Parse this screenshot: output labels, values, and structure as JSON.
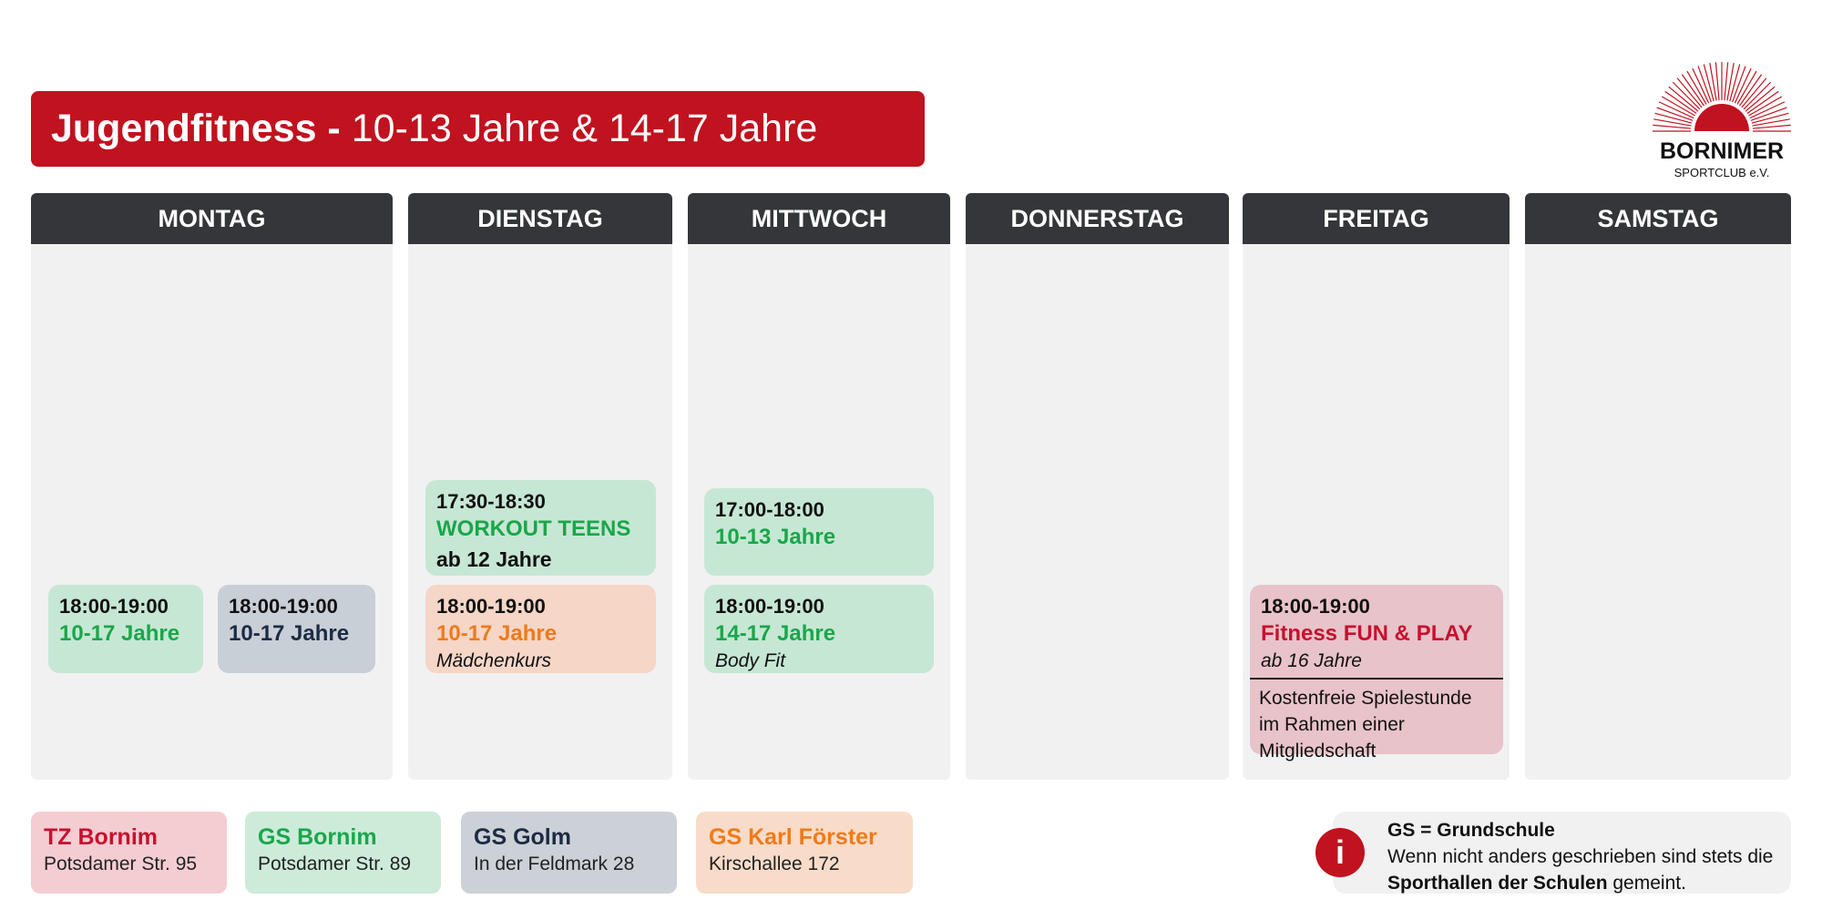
{
  "header": {
    "title_bold": "Jugendfitness -",
    "title_regular": "10-13 Jahre & 14-17 Jahre",
    "logo_name": "BORNIMER",
    "logo_sub": "SPORTCLUB e.V."
  },
  "days": [
    {
      "name": "MONTAG",
      "events": [
        {
          "time": "18:00-19:00",
          "title": "10-17 Jahre",
          "color": "#c6e7d4",
          "text_color": "#1aa64a"
        },
        {
          "time": "18:00-19:00",
          "title": "10-17 Jahre",
          "color": "#c9cfd6",
          "text_color": "#1c2b44"
        }
      ]
    },
    {
      "name": "DIENSTAG",
      "events": [
        {
          "time": "17:30-18:30",
          "title": "WORKOUT TEENS",
          "sub": "ab 12 Jahre",
          "color": "#c6e7d4",
          "text_color": "#1aa64a"
        },
        {
          "time": "18:00-19:00",
          "title": "10-17 Jahre",
          "note": "Mädchenkurs",
          "color": "#f6d6c6",
          "text_color": "#f07a1a"
        }
      ]
    },
    {
      "name": "MITTWOCH",
      "events": [
        {
          "time": "17:00-18:00",
          "title": "10-13 Jahre",
          "color": "#c6e7d4",
          "text_color": "#1aa64a"
        },
        {
          "time": "18:00-19:00",
          "title": "14-17 Jahre",
          "note": "Body Fit",
          "color": "#c6e7d4",
          "text_color": "#1aa64a"
        }
      ]
    },
    {
      "name": "DONNERSTAG",
      "events": []
    },
    {
      "name": "FREITAG",
      "events": [
        {
          "time": "18:00-19:00",
          "title": "Fitness FUN & PLAY",
          "note": "ab 16 Jahre",
          "extra": "Kostenfreie Spielestunde im Rahmen einer Mitgliedschaft",
          "color": "#e8c3c9",
          "text_color": "#c8102e"
        }
      ]
    },
    {
      "name": "SAMSTAG",
      "events": []
    }
  ],
  "legend": [
    {
      "name": "TZ Bornim",
      "address": "Potsdamer Str. 95",
      "color": "#f4cdd3",
      "text_color": "#c8102e"
    },
    {
      "name": "GS Bornim",
      "address": "Potsdamer Str. 89",
      "color": "#cdebd9",
      "text_color": "#1aa64a"
    },
    {
      "name": "GS Golm",
      "address": "In der Feldmark 28",
      "color": "#ccd1d7",
      "text_color": "#1c2b44"
    },
    {
      "name": "GS Karl Förster",
      "address": "Kirschallee 172",
      "color": "#f8dcc9",
      "text_color": "#f07a1a"
    }
  ],
  "info": {
    "icon": "i",
    "title": "GS = Grundschule",
    "text": [
      "Wenn nicht anders geschrieben sind stets die ",
      "Sporthallen der Schulen",
      " gemeint."
    ]
  }
}
